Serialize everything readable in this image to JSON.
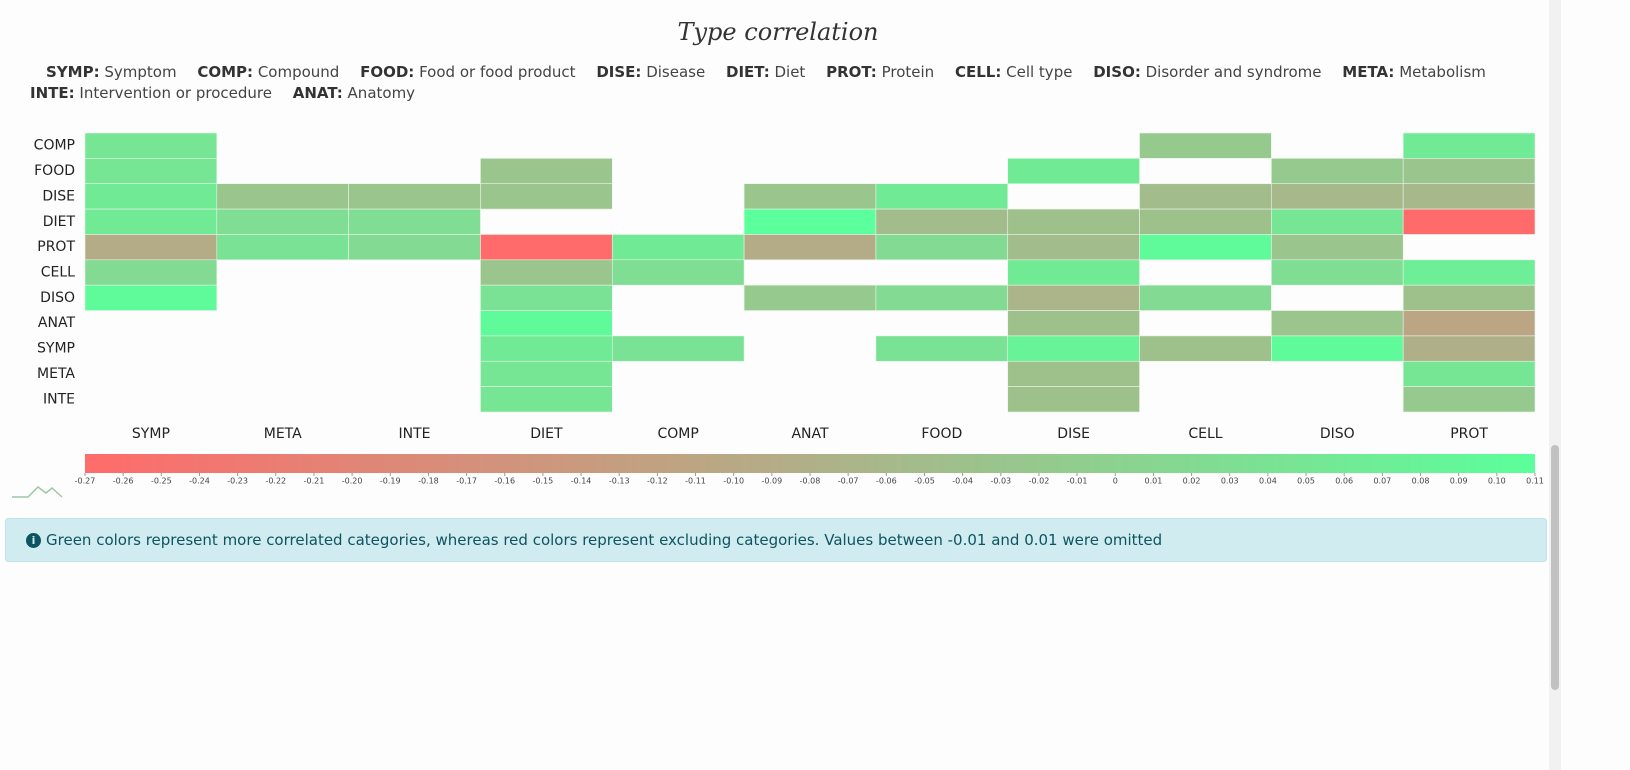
{
  "chart_data": {
    "type": "heatmap",
    "title": "Type correlation",
    "legend": [
      {
        "code": "SYMP:",
        "label": "Symptom"
      },
      {
        "code": "COMP:",
        "label": "Compound"
      },
      {
        "code": "FOOD:",
        "label": "Food or food product"
      },
      {
        "code": "DISE:",
        "label": "Disease"
      },
      {
        "code": "DIET:",
        "label": "Diet"
      },
      {
        "code": "PROT:",
        "label": "Protein"
      },
      {
        "code": "CELL:",
        "label": "Cell type"
      },
      {
        "code": "DISO:",
        "label": "Disorder and syndrome"
      },
      {
        "code": "META:",
        "label": "Metabolism"
      },
      {
        "code": "INTE:",
        "label": "Intervention or procedure"
      },
      {
        "code": "ANAT:",
        "label": "Anatomy"
      }
    ],
    "x_categories": [
      "SYMP",
      "META",
      "INTE",
      "DIET",
      "COMP",
      "ANAT",
      "FOOD",
      "DISE",
      "CELL",
      "DISO",
      "PROT"
    ],
    "y_categories": [
      "COMP",
      "FOOD",
      "DISE",
      "DIET",
      "PROT",
      "CELL",
      "DISO",
      "ANAT",
      "SYMP",
      "META",
      "INTE"
    ],
    "values": [
      [
        0.05,
        null,
        null,
        null,
        null,
        null,
        null,
        null,
        -0.02,
        null,
        0.06
      ],
      [
        0.05,
        null,
        null,
        -0.03,
        null,
        null,
        null,
        0.06,
        null,
        -0.02,
        -0.03
      ],
      [
        0.06,
        -0.03,
        -0.03,
        -0.03,
        null,
        -0.03,
        0.06,
        null,
        -0.05,
        -0.06,
        -0.06
      ],
      [
        0.06,
        0.03,
        0.03,
        null,
        null,
        0.11,
        -0.05,
        -0.04,
        -0.04,
        0.05,
        -0.27
      ],
      [
        -0.09,
        0.04,
        0.02,
        -0.27,
        0.06,
        -0.09,
        0.02,
        -0.05,
        0.1,
        -0.03,
        null
      ],
      [
        0.02,
        null,
        null,
        -0.03,
        0.03,
        null,
        null,
        0.06,
        null,
        0.03,
        0.07
      ],
      [
        0.1,
        null,
        null,
        0.04,
        null,
        -0.02,
        0.02,
        -0.07,
        0.02,
        null,
        -0.04
      ],
      [
        null,
        null,
        null,
        0.1,
        null,
        null,
        null,
        -0.04,
        null,
        -0.03,
        -0.11
      ],
      [
        null,
        null,
        null,
        0.06,
        0.04,
        null,
        0.04,
        0.08,
        -0.04,
        0.1,
        -0.08
      ],
      [
        null,
        null,
        null,
        0.05,
        null,
        null,
        null,
        -0.04,
        null,
        null,
        0.05
      ],
      [
        null,
        null,
        null,
        0.05,
        null,
        null,
        null,
        -0.04,
        null,
        null,
        -0.02
      ]
    ],
    "colorscale": [
      "#ff6b6b",
      "#b0b088",
      "#5bff9b"
    ],
    "clim": [
      -0.27,
      0.11
    ],
    "cticks": [
      -0.27,
      -0.26,
      -0.25,
      -0.24,
      -0.23,
      -0.22,
      -0.21,
      {
        "value": -0.2,
        "label": "-0.20"
      },
      -0.19,
      -0.18,
      -0.17,
      -0.16,
      -0.15,
      -0.14,
      -0.13,
      -0.12,
      -0.11,
      {
        "value": -0.1,
        "label": "-0.10"
      },
      -0.09,
      -0.08,
      -0.07,
      -0.06,
      -0.05,
      -0.04,
      -0.03,
      -0.02,
      -0.01,
      0,
      0.01,
      0.02,
      0.03,
      0.04,
      0.05,
      0.06,
      0.07,
      0.08,
      0.09,
      {
        "value": 0.1,
        "label": "0.10"
      },
      0.11
    ],
    "note": "Green colors represent more correlated categories, whereas red colors represent excluding categories. Values between -0.01 and 0.01 were omitted"
  }
}
